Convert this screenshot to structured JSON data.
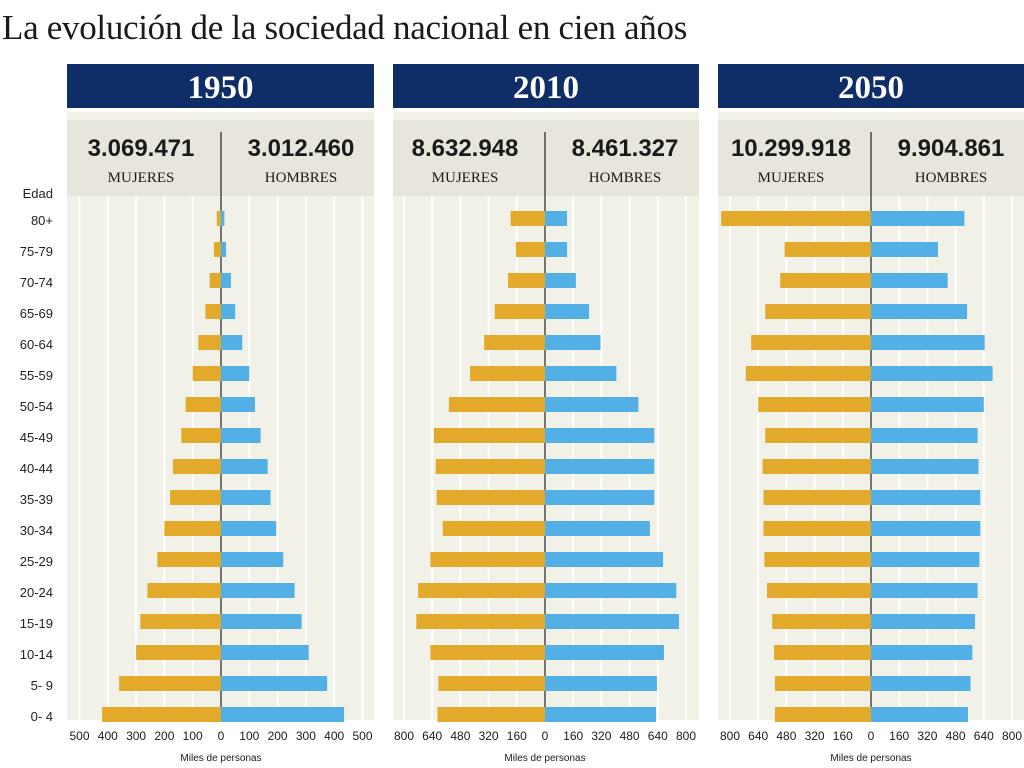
{
  "title": "La evolución de la sociedad nacional en cien años",
  "age_axis_label": "Edad",
  "age_groups": [
    "80+",
    "75-79",
    "70-74",
    "65-69",
    "60-64",
    "55-59",
    "50-54",
    "45-49",
    "40-44",
    "35-39",
    "30-34",
    "25-29",
    "20-24",
    "15-19",
    "10-14",
    "5- 9",
    "0- 4"
  ],
  "colors": {
    "mujeres": "#e2a92a",
    "hombres": "#52b0e6",
    "header": "#0f2d66",
    "panel_bg": "#f2f1e8",
    "totals_bg": "#e8e6dc"
  },
  "chart_data": [
    {
      "type": "bar",
      "orientation": "horizontal-population-pyramid",
      "title": "1950",
      "totals": {
        "mujeres": "3.069.471",
        "hombres": "3.012.460"
      },
      "totals_labels": {
        "mujeres": "MUJERES",
        "hombres": "HOMBRES"
      },
      "xlabel": "Miles de personas",
      "xlim": [
        -500,
        500
      ],
      "xticks": [
        500,
        400,
        300,
        200,
        100,
        0,
        100,
        200,
        300,
        400,
        500
      ],
      "categories": [
        "80+",
        "75-79",
        "70-74",
        "65-69",
        "60-64",
        "55-59",
        "50-54",
        "45-49",
        "40-44",
        "35-39",
        "30-34",
        "25-29",
        "20-24",
        "15-19",
        "10-14",
        "5- 9",
        "0- 4"
      ],
      "series": [
        {
          "name": "MUJERES",
          "values": [
            15,
            25,
            40,
            55,
            80,
            100,
            125,
            140,
            170,
            180,
            200,
            225,
            260,
            285,
            300,
            360,
            420
          ]
        },
        {
          "name": "HOMBRES",
          "values": [
            12,
            18,
            35,
            50,
            75,
            100,
            120,
            140,
            165,
            175,
            195,
            220,
            260,
            285,
            310,
            375,
            435
          ]
        }
      ]
    },
    {
      "type": "bar",
      "orientation": "horizontal-population-pyramid",
      "title": "2010",
      "totals": {
        "mujeres": "8.632.948",
        "hombres": "8.461.327"
      },
      "totals_labels": {
        "mujeres": "MUJERES",
        "hombres": "HOMBRES"
      },
      "xlabel": "Miles de personas",
      "xlim": [
        -800,
        800
      ],
      "xticks": [
        800,
        640,
        480,
        320,
        160,
        0,
        160,
        320,
        480,
        640,
        800
      ],
      "categories": [
        "80+",
        "75-79",
        "70-74",
        "65-69",
        "60-64",
        "55-59",
        "50-54",
        "45-49",
        "40-44",
        "35-39",
        "30-34",
        "25-29",
        "20-24",
        "15-19",
        "10-14",
        "5- 9",
        "0- 4"
      ],
      "series": [
        {
          "name": "MUJERES",
          "values": [
            195,
            165,
            210,
            285,
            345,
            425,
            545,
            630,
            620,
            615,
            580,
            650,
            720,
            730,
            650,
            605,
            610
          ]
        },
        {
          "name": "HOMBRES",
          "values": [
            125,
            125,
            175,
            250,
            315,
            405,
            530,
            620,
            620,
            620,
            595,
            670,
            745,
            760,
            675,
            635,
            630
          ]
        }
      ]
    },
    {
      "type": "bar",
      "orientation": "horizontal-population-pyramid",
      "title": "2050",
      "totals": {
        "mujeres": "10.299.918",
        "hombres": "9.904.861"
      },
      "totals_labels": {
        "mujeres": "MUJERES",
        "hombres": "HOMBRES"
      },
      "xlabel": "Miles de personas",
      "xlim": [
        -800,
        800
      ],
      "xticks": [
        800,
        640,
        480,
        320,
        160,
        0,
        160,
        320,
        480,
        640,
        800
      ],
      "categories": [
        "80+",
        "75-79",
        "70-74",
        "65-69",
        "60-64",
        "55-59",
        "50-54",
        "45-49",
        "40-44",
        "35-39",
        "30-34",
        "25-29",
        "20-24",
        "15-19",
        "10-14",
        "5- 9",
        "0- 4"
      ],
      "series": [
        {
          "name": "MUJERES",
          "values": [
            850,
            490,
            515,
            600,
            680,
            710,
            640,
            600,
            615,
            610,
            610,
            605,
            590,
            560,
            550,
            545,
            545
          ]
        },
        {
          "name": "HOMBRES",
          "values": [
            530,
            380,
            435,
            545,
            645,
            690,
            640,
            605,
            610,
            620,
            620,
            615,
            605,
            590,
            575,
            565,
            550
          ]
        }
      ]
    }
  ]
}
